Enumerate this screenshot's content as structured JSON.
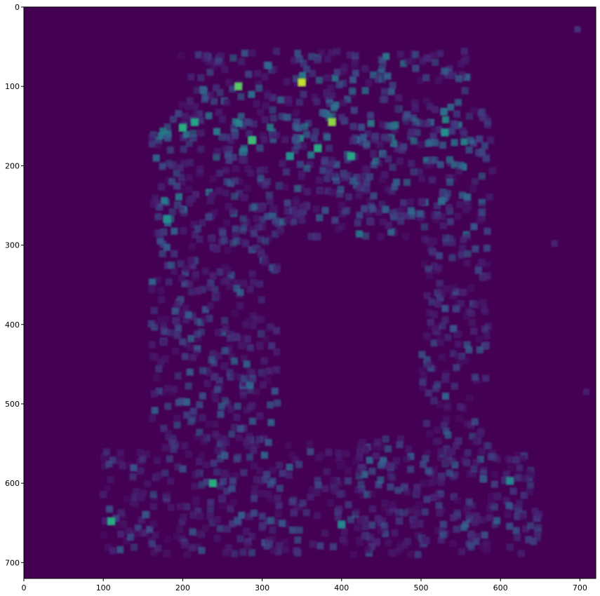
{
  "chart_data": {
    "type": "heatmap",
    "title": "",
    "xlabel": "",
    "ylabel": "",
    "colormap": "viridis",
    "background_color": "#440154",
    "xlim": [
      0,
      720
    ],
    "ylim": [
      720,
      0
    ],
    "x_ticks": [
      0,
      100,
      200,
      300,
      400,
      500,
      600,
      700
    ],
    "y_ticks": [
      0,
      100,
      200,
      300,
      400,
      500,
      600,
      700
    ],
    "x_tick_labels": [
      "0",
      "100",
      "200",
      "300",
      "400",
      "500",
      "600",
      "700"
    ],
    "y_tick_labels": [
      "0",
      "100",
      "200",
      "300",
      "400",
      "500",
      "600",
      "700"
    ],
    "hotspots": [
      {
        "x": 350,
        "y": 95,
        "value": 0.95
      },
      {
        "x": 270,
        "y": 100,
        "value": 0.85
      },
      {
        "x": 388,
        "y": 145,
        "value": 0.9
      },
      {
        "x": 200,
        "y": 152,
        "value": 0.75
      },
      {
        "x": 215,
        "y": 145,
        "value": 0.7
      },
      {
        "x": 287,
        "y": 168,
        "value": 0.8
      },
      {
        "x": 370,
        "y": 178,
        "value": 0.75
      },
      {
        "x": 412,
        "y": 188,
        "value": 0.7
      },
      {
        "x": 335,
        "y": 188,
        "value": 0.6
      },
      {
        "x": 238,
        "y": 600,
        "value": 0.75
      },
      {
        "x": 110,
        "y": 648,
        "value": 0.75
      },
      {
        "x": 180,
        "y": 267,
        "value": 0.6
      },
      {
        "x": 530,
        "y": 158,
        "value": 0.6
      },
      {
        "x": 612,
        "y": 597,
        "value": 0.55
      },
      {
        "x": 400,
        "y": 652,
        "value": 0.55
      }
    ]
  }
}
